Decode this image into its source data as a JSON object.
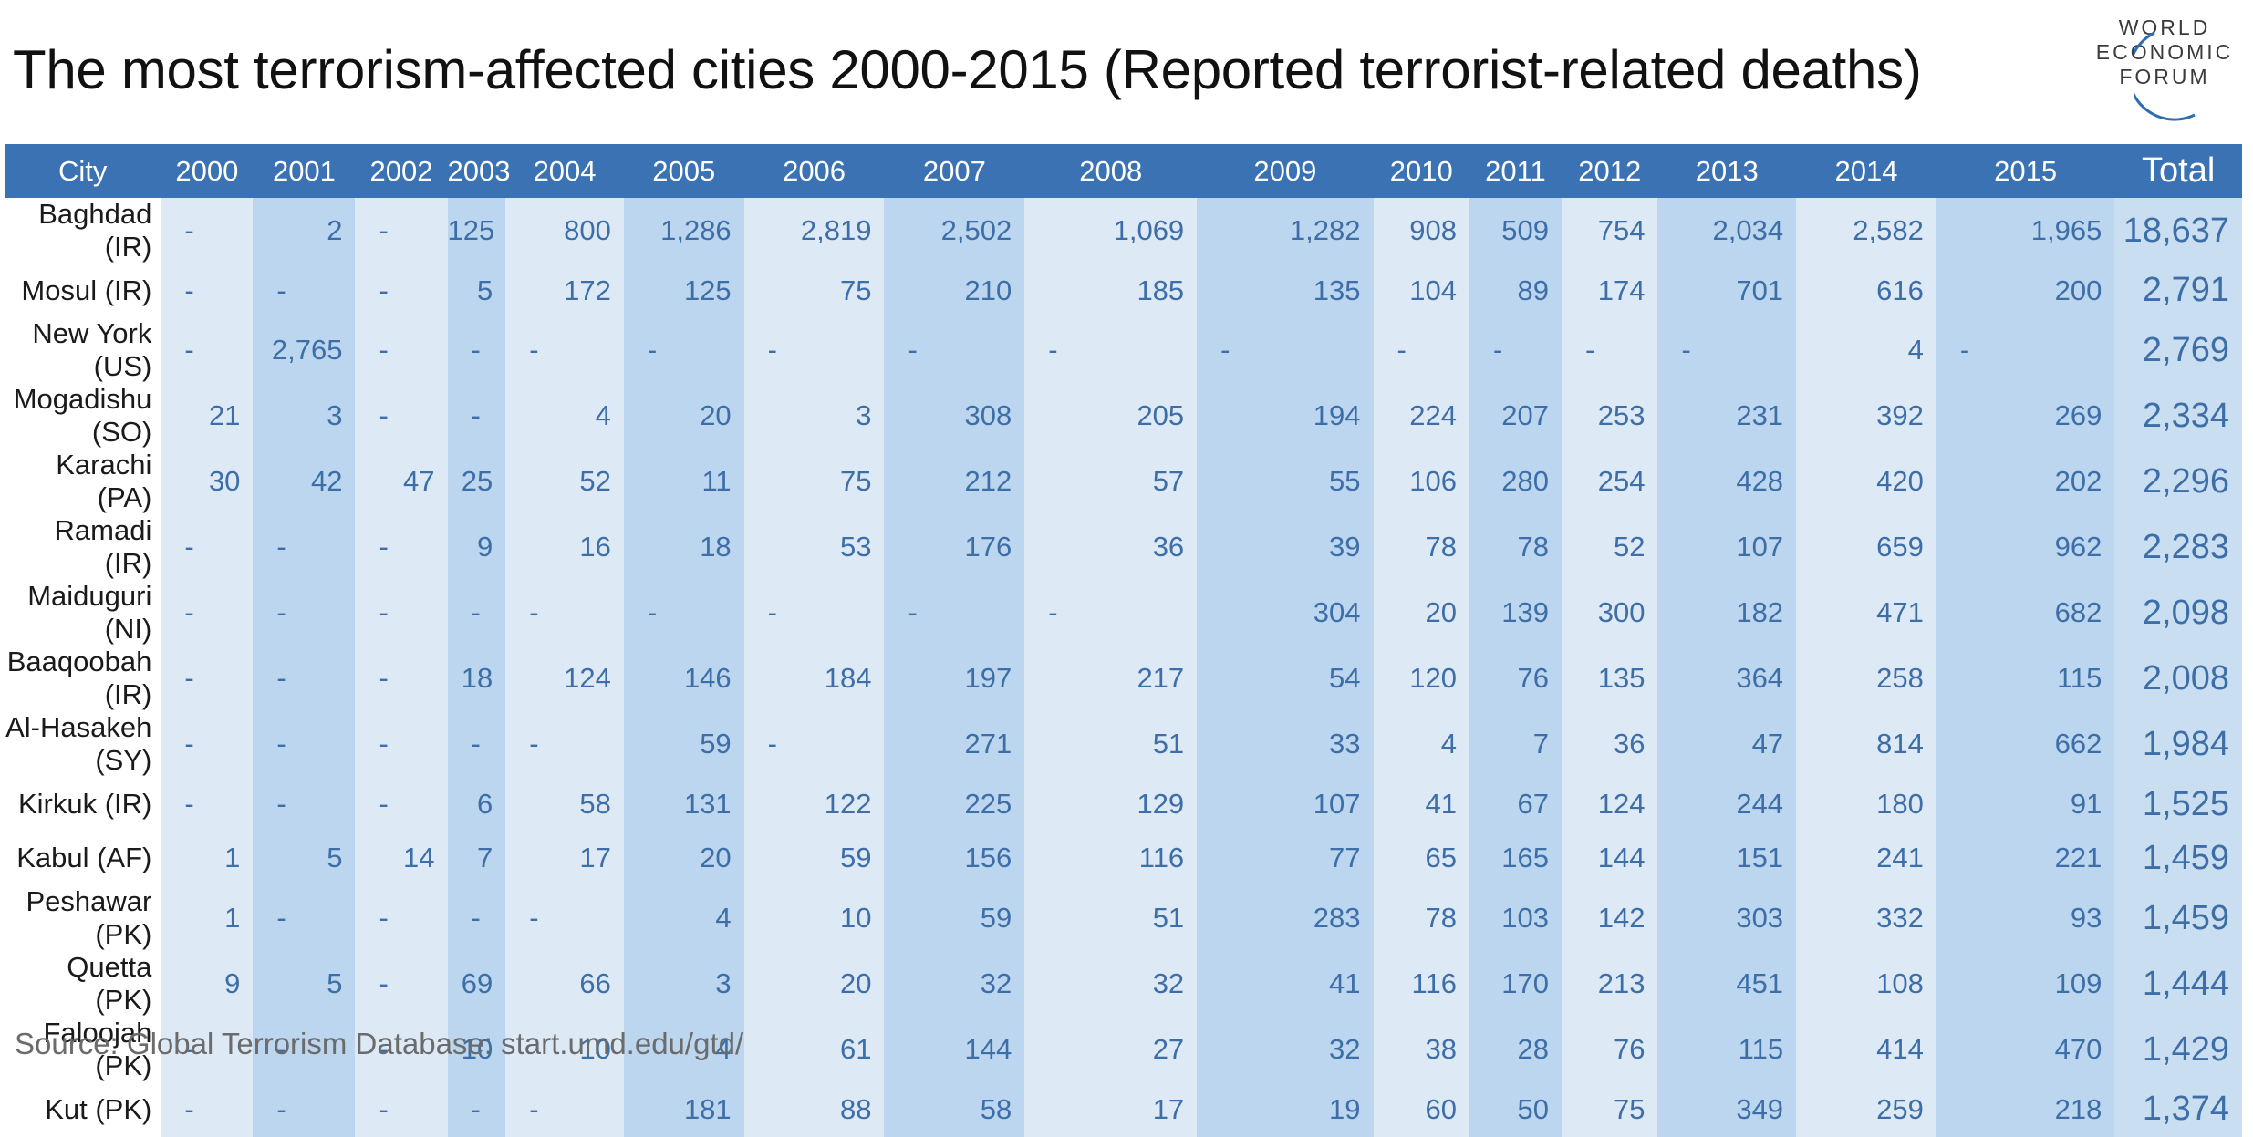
{
  "title": "The most terrorism-affected cities 2000-2015 (Reported terrorist-related deaths)",
  "logo": {
    "line1": "WORLD",
    "line2": "ECONOMIC",
    "line3": "FORUM",
    "accent_color": "#2d6db5"
  },
  "source": "Source: Global Terrorism Database: start.umd.edu/gtd/",
  "colors": {
    "header_bg": "#3a72b3",
    "band_light": "#ddeaf6",
    "band_medium": "#bbd6ee",
    "value_text": "#3e6ea8"
  },
  "chart_data": {
    "type": "table",
    "title": "The most terrorism-affected cities 2000-2015 (Reported terrorist-related deaths)",
    "columns": [
      "City",
      "2000",
      "2001",
      "2002",
      "2003",
      "2004",
      "2005",
      "2006",
      "2007",
      "2008",
      "2009",
      "2010",
      "2011",
      "2012",
      "2013",
      "2014",
      "2015",
      "Total"
    ],
    "rows": [
      [
        "Baghdad (IR)",
        "-",
        "2",
        "-",
        "125",
        "800",
        "1,286",
        "2,819",
        "2,502",
        "1,069",
        "1,282",
        "908",
        "509",
        "754",
        "2,034",
        "2,582",
        "1,965",
        "18,637"
      ],
      [
        "Mosul (IR)",
        "-",
        "-",
        "-",
        "5",
        "172",
        "125",
        "75",
        "210",
        "185",
        "135",
        "104",
        "89",
        "174",
        "701",
        "616",
        "200",
        "2,791"
      ],
      [
        "New York (US)",
        "-",
        "2,765",
        "-",
        "-",
        "-",
        "-",
        "-",
        "-",
        "-",
        "-",
        "-",
        "-",
        "-",
        "-",
        "4",
        "-",
        "2,769"
      ],
      [
        "Mogadishu (SO)",
        "21",
        "3",
        "-",
        "-",
        "4",
        "20",
        "3",
        "308",
        "205",
        "194",
        "224",
        "207",
        "253",
        "231",
        "392",
        "269",
        "2,334"
      ],
      [
        "Karachi (PA)",
        "30",
        "42",
        "47",
        "25",
        "52",
        "11",
        "75",
        "212",
        "57",
        "55",
        "106",
        "280",
        "254",
        "428",
        "420",
        "202",
        "2,296"
      ],
      [
        "Ramadi (IR)",
        "-",
        "-",
        "-",
        "9",
        "16",
        "18",
        "53",
        "176",
        "36",
        "39",
        "78",
        "78",
        "52",
        "107",
        "659",
        "962",
        "2,283"
      ],
      [
        "Maiduguri (NI)",
        "-",
        "-",
        "-",
        "-",
        "-",
        "-",
        "-",
        "-",
        "-",
        "304",
        "20",
        "139",
        "300",
        "182",
        "471",
        "682",
        "2,098"
      ],
      [
        "Baaqoobah (IR)",
        "-",
        "-",
        "-",
        "18",
        "124",
        "146",
        "184",
        "197",
        "217",
        "54",
        "120",
        "76",
        "135",
        "364",
        "258",
        "115",
        "2,008"
      ],
      [
        "Al-Hasakeh (SY)",
        "-",
        "-",
        "-",
        "-",
        "-",
        "59",
        "-",
        "271",
        "51",
        "33",
        "4",
        "7",
        "36",
        "47",
        "814",
        "662",
        "1,984"
      ],
      [
        "Kirkuk (IR)",
        "-",
        "-",
        "-",
        "6",
        "58",
        "131",
        "122",
        "225",
        "129",
        "107",
        "41",
        "67",
        "124",
        "244",
        "180",
        "91",
        "1,525"
      ],
      [
        "Kabul (AF)",
        "1",
        "5",
        "14",
        "7",
        "17",
        "20",
        "59",
        "156",
        "116",
        "77",
        "65",
        "165",
        "144",
        "151",
        "241",
        "221",
        "1,459"
      ],
      [
        "Peshawar (PK)",
        "1",
        "-",
        "-",
        "-",
        "-",
        "4",
        "10",
        "59",
        "51",
        "283",
        "78",
        "103",
        "142",
        "303",
        "332",
        "93",
        "1,459"
      ],
      [
        "Quetta (PK)",
        "9",
        "5",
        "-",
        "69",
        "66",
        "3",
        "20",
        "32",
        "32",
        "41",
        "116",
        "170",
        "213",
        "451",
        "108",
        "109",
        "1,444"
      ],
      [
        "Faloojah (PK)",
        "-",
        "-",
        "-",
        "10",
        "10",
        "4",
        "61",
        "144",
        "27",
        "32",
        "38",
        "28",
        "76",
        "115",
        "414",
        "470",
        "1,429"
      ],
      [
        "Kut (PK)",
        "-",
        "-",
        "-",
        "-",
        "-",
        "181",
        "88",
        "58",
        "17",
        "19",
        "60",
        "50",
        "75",
        "349",
        "259",
        "218",
        "1,374"
      ]
    ]
  }
}
